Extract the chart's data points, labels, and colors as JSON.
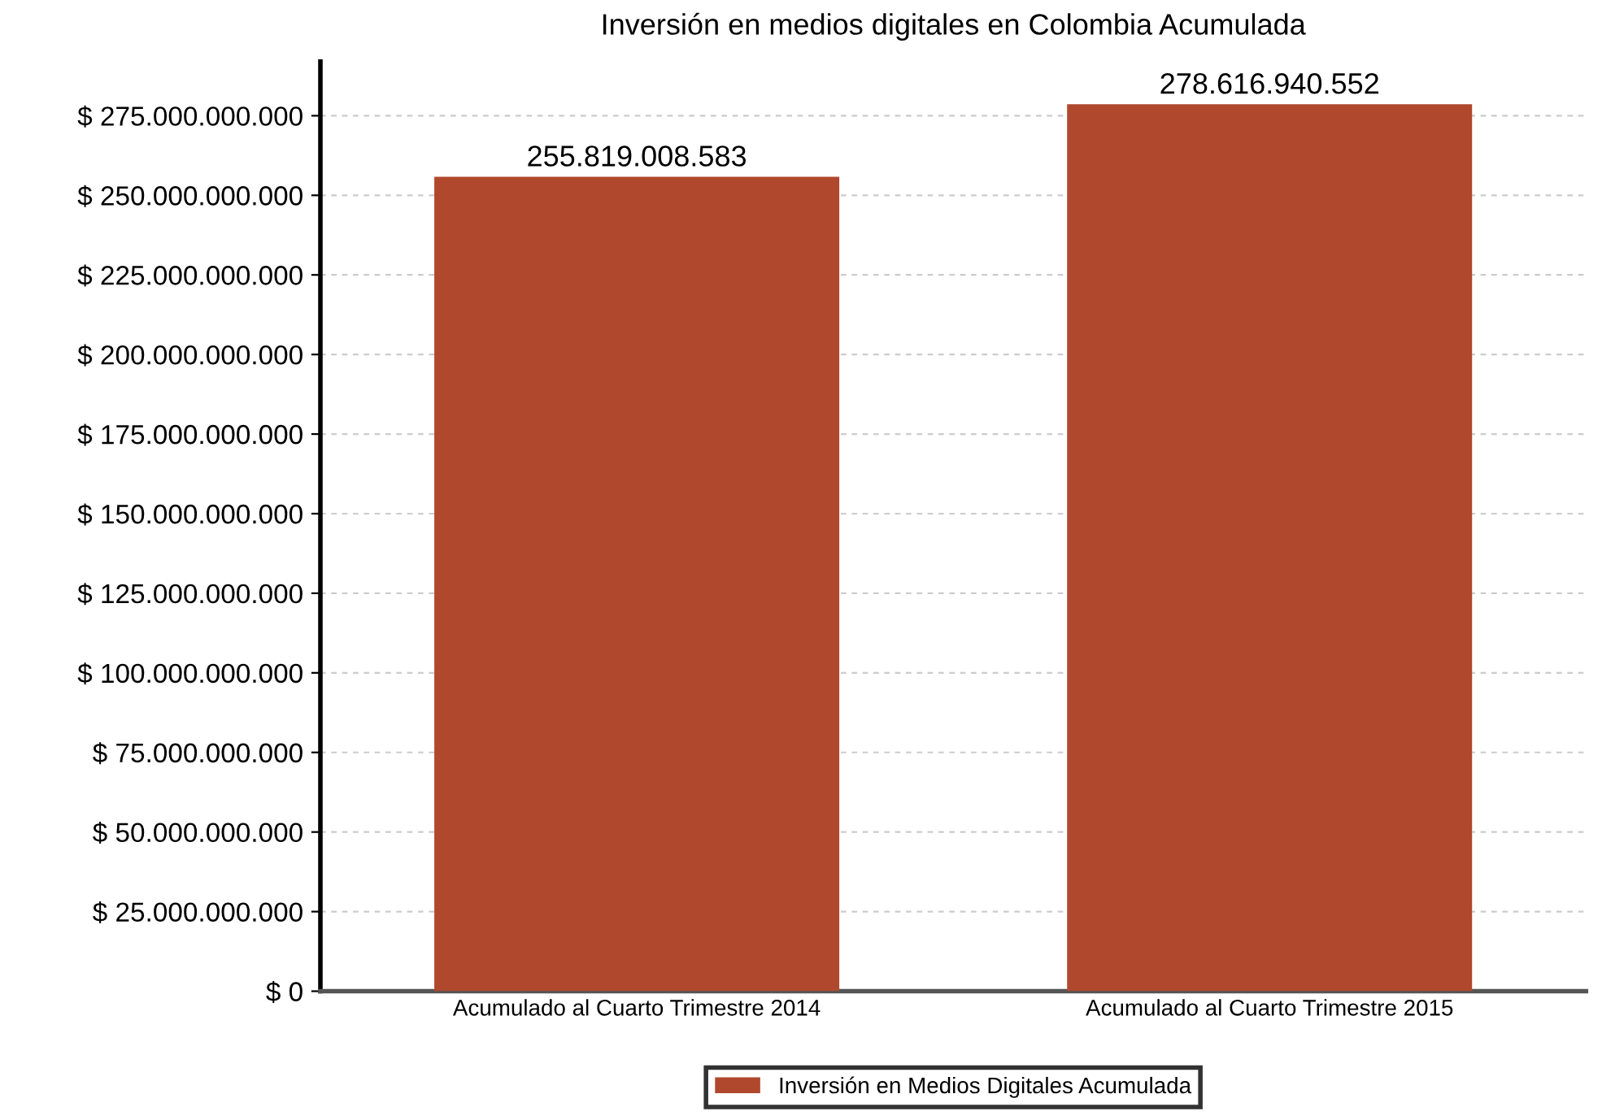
{
  "chart_data": {
    "type": "bar",
    "title": "Inversión en medios digitales en Colombia Acumulada",
    "categories": [
      "Acumulado al Cuarto Trimestre 2014",
      "Acumulado al Cuarto Trimestre 2015"
    ],
    "series": [
      {
        "name": "Inversión en Medios Digitales Acumulada",
        "color": "#b0482d",
        "values": [
          255819008583,
          278616940552
        ],
        "value_labels": [
          "255.819.008.583",
          "278.616.940.552"
        ]
      }
    ],
    "ylim": [
      0,
      292000000000
    ],
    "yticks": [
      {
        "value": 0,
        "label": "$ 0"
      },
      {
        "value": 25000000000,
        "label": "$ 25.000.000.000"
      },
      {
        "value": 50000000000,
        "label": "$ 50.000.000.000"
      },
      {
        "value": 75000000000,
        "label": "$ 75.000.000.000"
      },
      {
        "value": 100000000000,
        "label": "$ 100.000.000.000"
      },
      {
        "value": 125000000000,
        "label": "$ 125.000.000.000"
      },
      {
        "value": 150000000000,
        "label": "$ 150.000.000.000"
      },
      {
        "value": 175000000000,
        "label": "$ 175.000.000.000"
      },
      {
        "value": 200000000000,
        "label": "$ 200.000.000.000"
      },
      {
        "value": 225000000000,
        "label": "$ 225.000.000.000"
      },
      {
        "value": 250000000000,
        "label": "$ 250.000.000.000"
      },
      {
        "value": 275000000000,
        "label": "$ 275.000.000.000"
      }
    ],
    "grid": "y",
    "legend": "bottom"
  }
}
